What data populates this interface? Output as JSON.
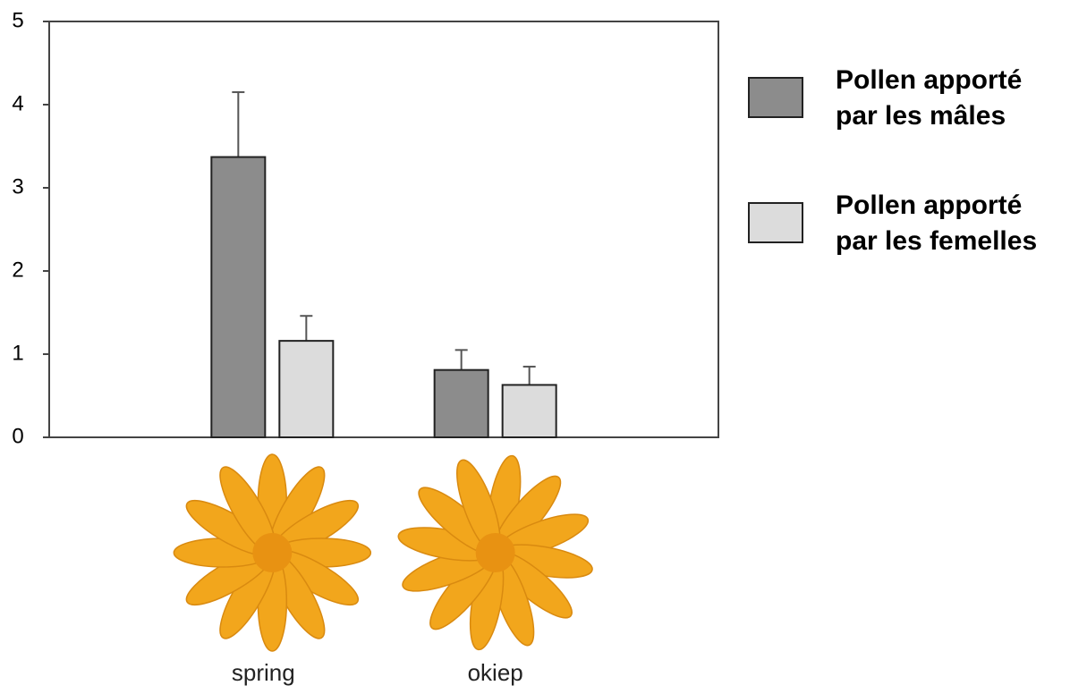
{
  "chart_data": {
    "type": "bar",
    "categories": [
      "spring",
      "okiep"
    ],
    "series": [
      {
        "name": "Pollen apporté par les mâles",
        "color": "#8c8c8c",
        "values": [
          3.37,
          0.81
        ],
        "errors": [
          0.78,
          0.24
        ]
      },
      {
        "name": "Pollen apporté par les femelles",
        "color": "#dcdcdc",
        "values": [
          1.16,
          0.63
        ],
        "errors": [
          0.3,
          0.22
        ]
      }
    ],
    "ylim": [
      0,
      5
    ],
    "yticks": [
      0,
      1,
      2,
      3,
      4,
      5
    ],
    "grid": false,
    "legend": "right"
  }
}
